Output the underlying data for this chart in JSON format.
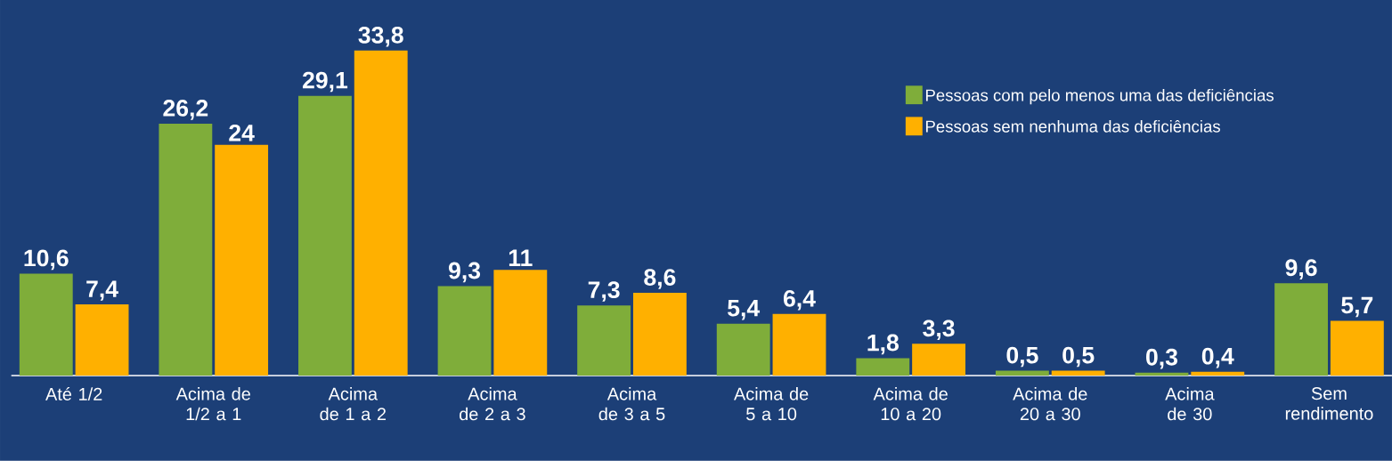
{
  "chart_data": {
    "type": "bar",
    "categories": [
      "Até 1/2",
      "Acima de 1/2 a 1",
      "Acima de 1 a 2",
      "Acima de 2 a 3",
      "Acima de 3 a 5",
      "Acima de 5 a 10",
      "Acima de 10 a 20",
      "Acima de 20 a 30",
      "Acima de 30",
      "Sem rendimento"
    ],
    "series": [
      {
        "name": "Pessoas com pelo menos uma das deficiências",
        "color": "#7fad3a",
        "values": [
          10.6,
          26.2,
          29.1,
          9.3,
          7.3,
          5.4,
          1.8,
          0.5,
          0.3,
          9.6
        ],
        "value_labels": [
          "10,6",
          "26,2",
          "29,1",
          "9,3",
          "7,3",
          "5,4",
          "1,8",
          "0,5",
          "0,3",
          "9,6"
        ]
      },
      {
        "name": "Pessoas sem nenhuma das deficiências",
        "color": "#ffb000",
        "values": [
          7.4,
          24,
          33.8,
          11,
          8.6,
          6.4,
          3.3,
          0.5,
          0.4,
          5.7
        ],
        "value_labels": [
          "7,4",
          "24",
          "33,8",
          "11",
          "8,6",
          "6,4",
          "3,3",
          "0,5",
          "0,4",
          "5,7"
        ]
      }
    ],
    "legend": "top right"
  }
}
